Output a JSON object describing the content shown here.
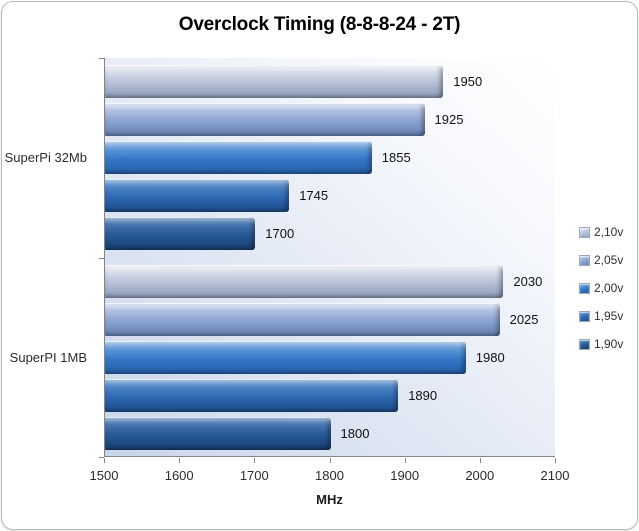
{
  "frame": {
    "background": "#ffffff",
    "border_color": "#b9b9b9"
  },
  "chart_data": {
    "type": "bar",
    "orientation": "horizontal",
    "title": "Overclock Timing (8-8-8-24 - 2T)",
    "xlabel": "MHz",
    "xlim": [
      1500,
      2100
    ],
    "xticks": [
      1500,
      1600,
      1700,
      1800,
      1900,
      2000,
      2100
    ],
    "categories": [
      "SuperPi 32Mb",
      "SuperPI 1MB"
    ],
    "series": [
      {
        "name": "2,10v",
        "values": [
          1950,
          2030
        ],
        "color": {
          "light": "#e9edf4",
          "base": "#b5c0d6",
          "dark": "#8f9db8"
        }
      },
      {
        "name": "2,05v",
        "values": [
          1925,
          2025
        ],
        "color": {
          "light": "#ccd6ec",
          "base": "#8ba2d2",
          "dark": "#6982b2"
        }
      },
      {
        "name": "2,00v",
        "values": [
          1855,
          1980
        ],
        "color": {
          "light": "#7eb0e2",
          "base": "#3377c9",
          "dark": "#275fa6"
        }
      },
      {
        "name": "1,95v",
        "values": [
          1745,
          1890
        ],
        "color": {
          "light": "#6899d2",
          "base": "#2d68b2",
          "dark": "#1e4e8c"
        }
      },
      {
        "name": "1,90v",
        "values": [
          1700,
          1800
        ],
        "color": {
          "light": "#5c88bd",
          "base": "#265897",
          "dark": "#193f70"
        }
      }
    ],
    "value_labels": true,
    "legend_position": "right",
    "plot_background_from": "#c9d5ea",
    "plot_background_to": "#ffffff",
    "axis_color": "#848484",
    "grid": false
  }
}
